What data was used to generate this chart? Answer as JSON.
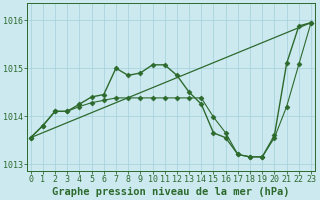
{
  "title": "Graphe pression niveau de la mer (hPa)",
  "series": [
    {
      "x": [
        0,
        1,
        2,
        3,
        4,
        5,
        6,
        7,
        8,
        9,
        10,
        11,
        12,
        13,
        14,
        15,
        16,
        17,
        18,
        19,
        20,
        21,
        22,
        23
      ],
      "y": [
        1013.55,
        1013.8,
        1014.1,
        1014.1,
        1014.25,
        1014.4,
        1014.45,
        1015.0,
        1014.85,
        1014.9,
        1015.07,
        1015.07,
        1014.85,
        1014.5,
        1014.25,
        1013.65,
        1013.55,
        1013.2,
        1013.15,
        1013.15,
        1013.6,
        1015.1,
        1015.88,
        1015.95
      ],
      "color": "#2d6a2d",
      "marker": "D",
      "markersize": 2.5,
      "linewidth": 1.0,
      "linestyle": "-",
      "zorder": 3
    },
    {
      "x": [
        0,
        23
      ],
      "y": [
        1013.55,
        1015.95
      ],
      "color": "#2d6a2d",
      "marker": null,
      "markersize": 0,
      "linewidth": 0.9,
      "linestyle": "-",
      "zorder": 2
    },
    {
      "x": [
        0,
        1,
        2,
        3,
        4,
        5,
        6,
        7,
        8,
        9,
        10,
        11,
        12,
        13,
        14,
        15,
        16,
        17,
        18,
        19,
        20,
        21,
        22,
        23
      ],
      "y": [
        1013.55,
        1013.8,
        1014.1,
        1014.1,
        1014.2,
        1014.28,
        1014.33,
        1014.38,
        1014.38,
        1014.38,
        1014.38,
        1014.38,
        1014.38,
        1014.38,
        1014.38,
        1013.98,
        1013.65,
        1013.2,
        1013.15,
        1013.15,
        1013.55,
        1014.2,
        1015.08,
        1015.95
      ],
      "color": "#2d6a2d",
      "marker": "D",
      "markersize": 2.5,
      "linewidth": 0.8,
      "linestyle": "-",
      "zorder": 3
    }
  ],
  "ylim": [
    1012.85,
    1016.35
  ],
  "yticks": [
    1013,
    1014,
    1015,
    1016
  ],
  "xlim": [
    -0.3,
    23.3
  ],
  "xticks": [
    0,
    1,
    2,
    3,
    4,
    5,
    6,
    7,
    8,
    9,
    10,
    11,
    12,
    13,
    14,
    15,
    16,
    17,
    18,
    19,
    20,
    21,
    22,
    23
  ],
  "bg_color": "#cce9f0",
  "grid_color": "#aad4dd",
  "line_color": "#2d6a2d",
  "text_color": "#2d6a2d",
  "title_fontsize": 7.5,
  "tick_fontsize": 6,
  "fig_width": 3.2,
  "fig_height": 2.0,
  "dpi": 100
}
